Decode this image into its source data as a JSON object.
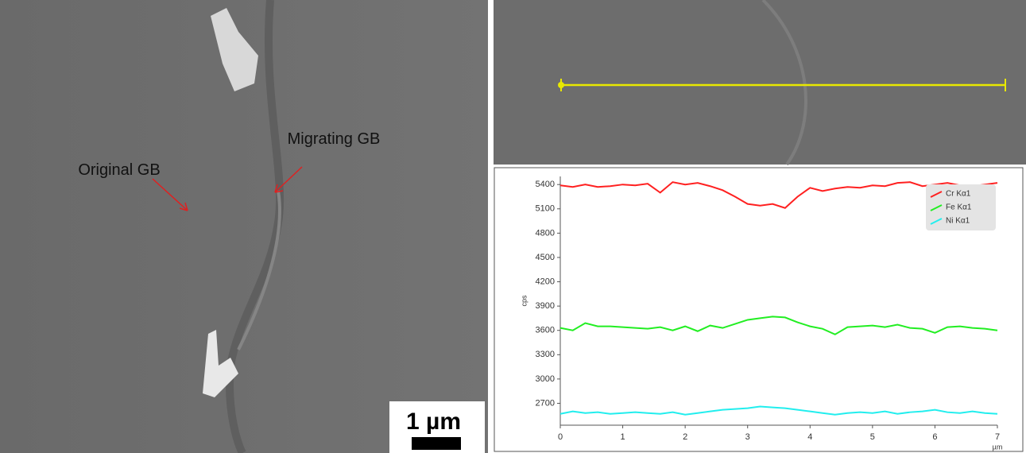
{
  "sem_image": {
    "annotations": [
      "Original GB",
      "Migrating GB"
    ],
    "scale_bar": "1 µm"
  },
  "chart_data": {
    "type": "line",
    "xlabel": "µm",
    "ylabel": "cps",
    "x": [
      0,
      0.2,
      0.4,
      0.6,
      0.8,
      1,
      1.2,
      1.4,
      1.6,
      1.8,
      2,
      2.2,
      2.4,
      2.6,
      2.8,
      3,
      3.2,
      3.4,
      3.6,
      3.8,
      4,
      4.2,
      4.4,
      4.6,
      4.8,
      5,
      5.2,
      5.4,
      5.6,
      5.8,
      6,
      6.2,
      6.4,
      6.6,
      6.8,
      7
    ],
    "series": [
      {
        "name": "Cr Kα1",
        "color": "#ff2020",
        "values": [
          5390,
          5370,
          5400,
          5370,
          5380,
          5400,
          5390,
          5410,
          5300,
          5430,
          5400,
          5420,
          5380,
          5330,
          5250,
          5160,
          5140,
          5160,
          5110,
          5250,
          5360,
          5320,
          5350,
          5370,
          5360,
          5390,
          5380,
          5420,
          5430,
          5380,
          5400,
          5420,
          5390,
          5380,
          5400,
          5420
        ]
      },
      {
        "name": "Fe Kα1",
        "color": "#22ee22",
        "values": [
          3630,
          3600,
          3690,
          3650,
          3650,
          3640,
          3630,
          3620,
          3640,
          3600,
          3650,
          3590,
          3660,
          3630,
          3680,
          3730,
          3750,
          3770,
          3760,
          3700,
          3650,
          3620,
          3550,
          3640,
          3650,
          3660,
          3640,
          3670,
          3630,
          3620,
          3570,
          3640,
          3650,
          3630,
          3620,
          3600
        ]
      },
      {
        "name": "Ni Kα1",
        "color": "#22eeee",
        "values": [
          2570,
          2600,
          2580,
          2590,
          2570,
          2580,
          2590,
          2580,
          2570,
          2590,
          2560,
          2580,
          2600,
          2620,
          2630,
          2640,
          2660,
          2650,
          2640,
          2620,
          2600,
          2580,
          2560,
          2580,
          2590,
          2580,
          2600,
          2570,
          2590,
          2600,
          2620,
          2590,
          2580,
          2600,
          2580,
          2570
        ]
      }
    ],
    "xlim": [
      0,
      7
    ],
    "xticks": [
      0,
      1,
      2,
      3,
      4,
      5,
      6,
      7
    ],
    "ylim": [
      2430,
      5500
    ],
    "yticks": [
      2700,
      3000,
      3300,
      3600,
      3900,
      4200,
      4500,
      4800,
      5100,
      5400
    ],
    "legend": "top-right"
  }
}
